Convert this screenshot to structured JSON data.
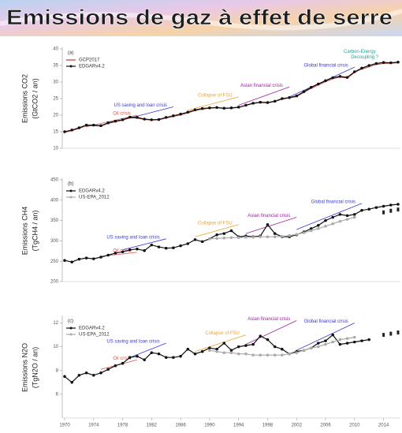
{
  "header": {
    "title": "Emissions de gaz à effet de serre"
  },
  "chart_data": [
    {
      "type": "line",
      "panel_label": "(a)",
      "ylabel": [
        "Emissions CO2",
        "(GtCO2 / an)"
      ],
      "xlim": [
        1970,
        2016
      ],
      "ylim": [
        10,
        40
      ],
      "yticks": [
        10,
        15,
        20,
        25,
        30,
        35,
        40
      ],
      "series": [
        {
          "name": "GCP2017",
          "color": "#c0392b",
          "style": "plain",
          "x": [
            1970,
            1971,
            1972,
            1973,
            1974,
            1975,
            1976,
            1977,
            1978,
            1979,
            1980,
            1981,
            1982,
            1983,
            1984,
            1985,
            1986,
            1987,
            1988,
            1989,
            1990,
            1991,
            1992,
            1993,
            1994,
            1995,
            1996,
            1997,
            1998,
            1999,
            2000,
            2001,
            2002,
            2003,
            2004,
            2005,
            2006,
            2007,
            2008,
            2009,
            2010,
            2011,
            2012,
            2013,
            2014,
            2015,
            2016
          ],
          "values": [
            14.8,
            15.3,
            16.0,
            16.8,
            16.8,
            16.7,
            17.5,
            18.0,
            18.5,
            19.2,
            19.1,
            18.7,
            18.5,
            18.6,
            19.1,
            19.6,
            20.1,
            20.7,
            21.4,
            21.8,
            22.1,
            22.2,
            22.0,
            22.1,
            22.3,
            22.9,
            23.5,
            23.8,
            23.7,
            24.1,
            24.8,
            25.2,
            25.6,
            26.9,
            28.1,
            29.1,
            30.1,
            31.0,
            31.5,
            31.2,
            32.9,
            33.9,
            34.6,
            35.3,
            35.6,
            35.7,
            35.8
          ]
        },
        {
          "name": "EDGARv4.2",
          "color": "#111111",
          "style": "dots",
          "x": [
            1970,
            1971,
            1972,
            1973,
            1974,
            1975,
            1976,
            1977,
            1978,
            1979,
            1980,
            1981,
            1982,
            1983,
            1984,
            1985,
            1986,
            1987,
            1988,
            1989,
            1990,
            1991,
            1992,
            1993,
            1994,
            1995,
            1996,
            1997,
            1998,
            1999,
            2000,
            2001,
            2002,
            2003,
            2004,
            2005,
            2006,
            2007,
            2008,
            2009,
            2010,
            2011,
            2012,
            2013,
            2014,
            2015,
            2016
          ],
          "values": [
            15.0,
            15.5,
            16.2,
            17.0,
            17.0,
            16.8,
            17.7,
            18.2,
            18.6,
            19.4,
            19.3,
            18.8,
            18.6,
            18.7,
            19.3,
            19.8,
            20.3,
            20.9,
            21.6,
            22.0,
            22.2,
            22.3,
            22.1,
            22.2,
            22.4,
            23.0,
            23.6,
            23.9,
            23.8,
            24.2,
            25.0,
            25.3,
            25.8,
            27.1,
            28.4,
            29.4,
            30.4,
            31.3,
            31.7,
            31.4,
            33.1,
            34.2,
            35.0,
            35.6,
            35.9,
            35.8,
            36.0
          ]
        }
      ],
      "annotations": [
        {
          "text": "Oil crisis",
          "color": "#d9534f",
          "x": [
            1973,
            1980
          ],
          "y": [
            16.5,
            20
          ]
        },
        {
          "text": "US saving and loan crisis",
          "color": "#3a3ad0",
          "x": [
            1977,
            1985
          ],
          "y": [
            18,
            22.5
          ]
        },
        {
          "text": "Collapse of FSU",
          "color": "#f0a030",
          "x": [
            1987,
            1994
          ],
          "y": [
            21.5,
            25.5
          ]
        },
        {
          "text": "Asian financial crisis",
          "color": "#a020a0",
          "x": [
            1994,
            2001
          ],
          "y": [
            23,
            28.5
          ]
        },
        {
          "text": "Global financial crisis",
          "color": "#3a3ad0",
          "x": [
            2001,
            2010
          ],
          "y": [
            25.5,
            34.5
          ]
        },
        {
          "text": "Carbon-Energy",
          "color": "#2aa198",
          "x": 2008.5,
          "y": 39.2
        },
        {
          "text": "Decoupling ?",
          "color": "#2aa198",
          "x": 2009.5,
          "y": 37.5
        }
      ]
    },
    {
      "type": "line",
      "panel_label": "(b)",
      "ylabel": [
        "Emissions CH4",
        "(TgCH4 / an)"
      ],
      "xlim": [
        1970,
        2016
      ],
      "ylim": [
        200,
        450
      ],
      "yticks": [
        200,
        250,
        300,
        350,
        400,
        450
      ],
      "series": [
        {
          "name": "EDGARv4.2",
          "color": "#111111",
          "style": "dots",
          "x": [
            1970,
            1971,
            1972,
            1973,
            1974,
            1975,
            1976,
            1977,
            1978,
            1979,
            1980,
            1981,
            1982,
            1983,
            1984,
            1985,
            1986,
            1987,
            1988,
            1989,
            1990,
            1991,
            1992,
            1993,
            1994,
            1995,
            1996,
            1997,
            1998,
            1999,
            2000,
            2001,
            2002,
            2003,
            2004,
            2005,
            2006,
            2007,
            2008,
            2009,
            2010,
            2011,
            2012,
            2013,
            2014,
            2015,
            2016
          ],
          "values": [
            252,
            248,
            255,
            258,
            256,
            260,
            265,
            270,
            273,
            278,
            280,
            276,
            290,
            285,
            282,
            283,
            288,
            293,
            303,
            298,
            305,
            315,
            318,
            325,
            310,
            312,
            310,
            312,
            340,
            318,
            310,
            310,
            315,
            322,
            330,
            338,
            350,
            358,
            365,
            362,
            365,
            375,
            378,
            382,
            385,
            388,
            390
          ]
        },
        {
          "name": "US-EPA_2012",
          "color": "#aaaaaa",
          "style": "dots",
          "x": [
            1990,
            1991,
            1992,
            1993,
            1994,
            1995,
            1996,
            1997,
            1998,
            1999,
            2000,
            2001,
            2002,
            2003,
            2004,
            2005,
            2006,
            2007,
            2008,
            2009,
            2010
          ],
          "values": [
            305,
            306,
            307,
            308,
            308,
            309,
            309,
            310,
            310,
            310,
            311,
            313,
            316,
            320,
            325,
            330,
            336,
            342,
            348,
            353,
            358
          ]
        }
      ],
      "projection": {
        "color": "#222222",
        "x": [
          2014,
          2015,
          2016
        ],
        "values": [
          370,
          374,
          377
        ]
      },
      "annotations": [
        {
          "text": "Oil crisis",
          "color": "#d9534f",
          "x": [
            1975,
            1980
          ],
          "y": [
            262,
            272
          ]
        },
        {
          "text": "US saving and loan crisis",
          "color": "#3a3ad0",
          "x": [
            1978,
            1984
          ],
          "y": [
            278,
            305
          ]
        },
        {
          "text": "Collapse of FSU",
          "color": "#f0a030",
          "x": [
            1988,
            1994
          ],
          "y": [
            310,
            340
          ]
        },
        {
          "text": "Asian financial crisis",
          "color": "#a020a0",
          "x": [
            1995,
            2002
          ],
          "y": [
            318,
            358
          ]
        },
        {
          "text": "Global financial crisis",
          "color": "#3a3ad0",
          "x": [
            2002,
            2011
          ],
          "y": [
            328,
            392
          ]
        }
      ]
    },
    {
      "type": "line",
      "panel_label": "(c)",
      "ylabel": [
        "Emissions N2O",
        "(TgN2O / an)"
      ],
      "xlim": [
        1970,
        2016
      ],
      "ylim": [
        4,
        12.5
      ],
      "yticks": [
        6,
        8,
        10,
        12
      ],
      "xticks": [
        1970,
        1974,
        1978,
        1982,
        1986,
        1990,
        1994,
        1998,
        2002,
        2006,
        2010,
        2014
      ],
      "series": [
        {
          "name": "EDGARv4.2",
          "color": "#111111",
          "style": "dots",
          "x": [
            1970,
            1971,
            1972,
            1973,
            1974,
            1975,
            1976,
            1977,
            1978,
            1979,
            1980,
            1981,
            1982,
            1983,
            1984,
            1985,
            1986,
            1987,
            1988,
            1989,
            1990,
            1991,
            1992,
            1993,
            1994,
            1995,
            1996,
            1997,
            1998,
            1999,
            2000,
            2001,
            2002,
            2003,
            2004,
            2005,
            2006,
            2007,
            2008,
            2009,
            2010,
            2011,
            2012
          ],
          "values": [
            7.5,
            7.0,
            7.6,
            7.8,
            7.6,
            7.8,
            8.1,
            8.4,
            8.6,
            9.1,
            9.2,
            8.9,
            9.5,
            9.4,
            9.1,
            9.1,
            9.2,
            9.8,
            9.4,
            9.6,
            9.9,
            9.8,
            10.3,
            9.7,
            10.0,
            10.1,
            10.2,
            10.9,
            10.6,
            10.0,
            9.8,
            9.4,
            9.6,
            9.7,
            9.9,
            10.3,
            10.5,
            11.0,
            10.2,
            10.3,
            10.4,
            10.5,
            10.6
          ]
        },
        {
          "name": "US-EPA_2012",
          "color": "#aaaaaa",
          "style": "dots",
          "x": [
            1990,
            1991,
            1992,
            1993,
            1994,
            1995,
            1996,
            1997,
            1998,
            1999,
            2000,
            2001,
            2002,
            2003,
            2004,
            2005,
            2006,
            2007,
            2008,
            2009,
            2010
          ],
          "values": [
            9.7,
            9.6,
            9.5,
            9.5,
            9.4,
            9.4,
            9.3,
            9.3,
            9.3,
            9.3,
            9.3,
            9.4,
            9.5,
            9.7,
            9.9,
            10.0,
            10.2,
            10.4,
            10.6,
            10.7,
            10.8
          ]
        }
      ],
      "projection": {
        "color": "#222222",
        "x": [
          2014,
          2015,
          2016
        ],
        "values": [
          11.0,
          11.1,
          11.2
        ]
      },
      "annotations": [
        {
          "text": "Oil crisis",
          "color": "#d9534f",
          "x": [
            1975,
            1980
          ],
          "y": [
            8.1,
            8.9
          ]
        },
        {
          "text": "US saving and loan crisis",
          "color": "#3a3ad0",
          "x": [
            1979,
            1984
          ],
          "y": [
            9.1,
            10.3
          ]
        },
        {
          "text": "Collapse of FSU",
          "color": "#f0a030",
          "x": [
            1988,
            1995
          ],
          "y": [
            9.6,
            11.0
          ]
        },
        {
          "text": "Asian financial crisis",
          "color": "#a020a0",
          "x": [
            1995,
            2002
          ],
          "y": [
            10.2,
            12.2
          ]
        },
        {
          "text": "Global financial crisis",
          "color": "#3a3ad0",
          "x": [
            2002,
            2010
          ],
          "y": [
            9.7,
            12.0
          ]
        }
      ]
    }
  ]
}
